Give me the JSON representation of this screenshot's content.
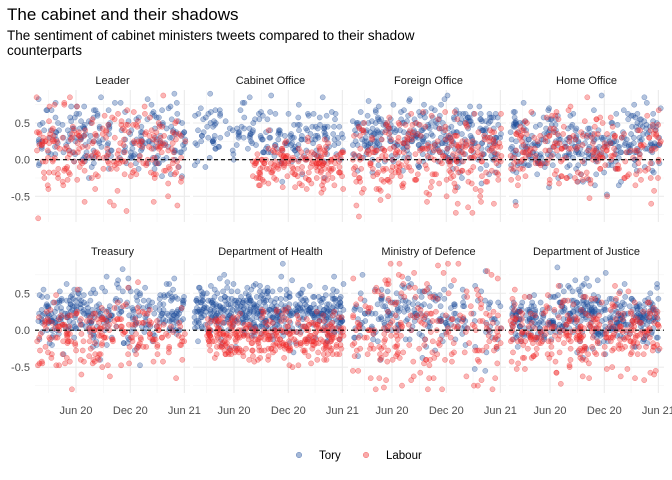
{
  "title": "The cabinet and their shadows",
  "subtitle": "The sentiment of cabinet ministers tweets compared to their shadow counterparts",
  "colors": {
    "Tory": "#1f4e9c",
    "Labour": "#ef2a2a",
    "grid": "#ebebeb",
    "zero_line": "#000000"
  },
  "chart_data": {
    "type": "scatter",
    "facet_layout": "2 rows x 4 columns",
    "x_axis": {
      "type": "date",
      "ticks": [
        "Jun 20",
        "Dec 20",
        "Jun 21"
      ],
      "domain": [
        "2020-01-15",
        "2021-06-20"
      ]
    },
    "y_axis": {
      "ticks": [
        "0.5",
        "0.0",
        "-0.5"
      ],
      "tick_values": [
        0.5,
        0.0,
        -0.5
      ],
      "ylim": [
        -0.85,
        0.95
      ]
    },
    "reference_line": {
      "y": 0,
      "style": "dashed"
    },
    "grid": true,
    "legend": {
      "position": "bottom",
      "entries": [
        "Tory",
        "Labour"
      ]
    },
    "panels": [
      {
        "label": "Leader",
        "tory": {
          "n": 220,
          "mean": 0.32,
          "sd": 0.24,
          "start": "2020-01-25",
          "end": "2021-06-05"
        },
        "labour": {
          "n": 240,
          "mean": 0.1,
          "sd": 0.28,
          "start": "2020-01-20",
          "end": "2021-06-05"
        }
      },
      {
        "label": "Cabinet Office",
        "tory": {
          "n": 200,
          "mean": 0.32,
          "sd": 0.22,
          "start": "2020-01-20",
          "end": "2021-06-05"
        },
        "labour": {
          "n": 170,
          "mean": -0.08,
          "sd": 0.15,
          "start": "2020-08-01",
          "end": "2021-06-05"
        }
      },
      {
        "label": "Foreign Office",
        "tory": {
          "n": 320,
          "mean": 0.3,
          "sd": 0.24,
          "start": "2020-01-20",
          "end": "2021-06-05"
        },
        "labour": {
          "n": 280,
          "mean": 0.02,
          "sd": 0.28,
          "start": "2020-01-20",
          "end": "2021-06-05"
        }
      },
      {
        "label": "Home Office",
        "tory": {
          "n": 300,
          "mean": 0.22,
          "sd": 0.24,
          "start": "2020-01-20",
          "end": "2021-06-10"
        },
        "labour": {
          "n": 220,
          "mean": 0.1,
          "sd": 0.3,
          "start": "2020-01-20",
          "end": "2021-06-10"
        }
      },
      {
        "label": "Treasury",
        "tory": {
          "n": 300,
          "mean": 0.2,
          "sd": 0.2,
          "start": "2020-01-25",
          "end": "2021-06-05"
        },
        "labour": {
          "n": 220,
          "mean": -0.02,
          "sd": 0.24,
          "start": "2020-01-20",
          "end": "2021-06-05"
        }
      },
      {
        "label": "Department of Health",
        "tory": {
          "n": 450,
          "mean": 0.25,
          "sd": 0.18,
          "start": "2020-01-20",
          "end": "2021-06-05"
        },
        "labour": {
          "n": 330,
          "mean": -0.1,
          "sd": 0.16,
          "start": "2020-03-01",
          "end": "2021-06-05"
        }
      },
      {
        "label": "Ministry of Defence",
        "tory": {
          "n": 200,
          "mean": 0.2,
          "sd": 0.24,
          "start": "2020-01-25",
          "end": "2021-06-05"
        },
        "labour": {
          "n": 230,
          "mean": 0.0,
          "sd": 0.42,
          "start": "2020-01-20",
          "end": "2021-06-05"
        }
      },
      {
        "label": "Department of Justice",
        "tory": {
          "n": 380,
          "mean": 0.18,
          "sd": 0.2,
          "start": "2020-01-25",
          "end": "2021-06-05"
        },
        "labour": {
          "n": 300,
          "mean": -0.05,
          "sd": 0.25,
          "start": "2020-01-20",
          "end": "2021-06-05"
        }
      }
    ]
  }
}
